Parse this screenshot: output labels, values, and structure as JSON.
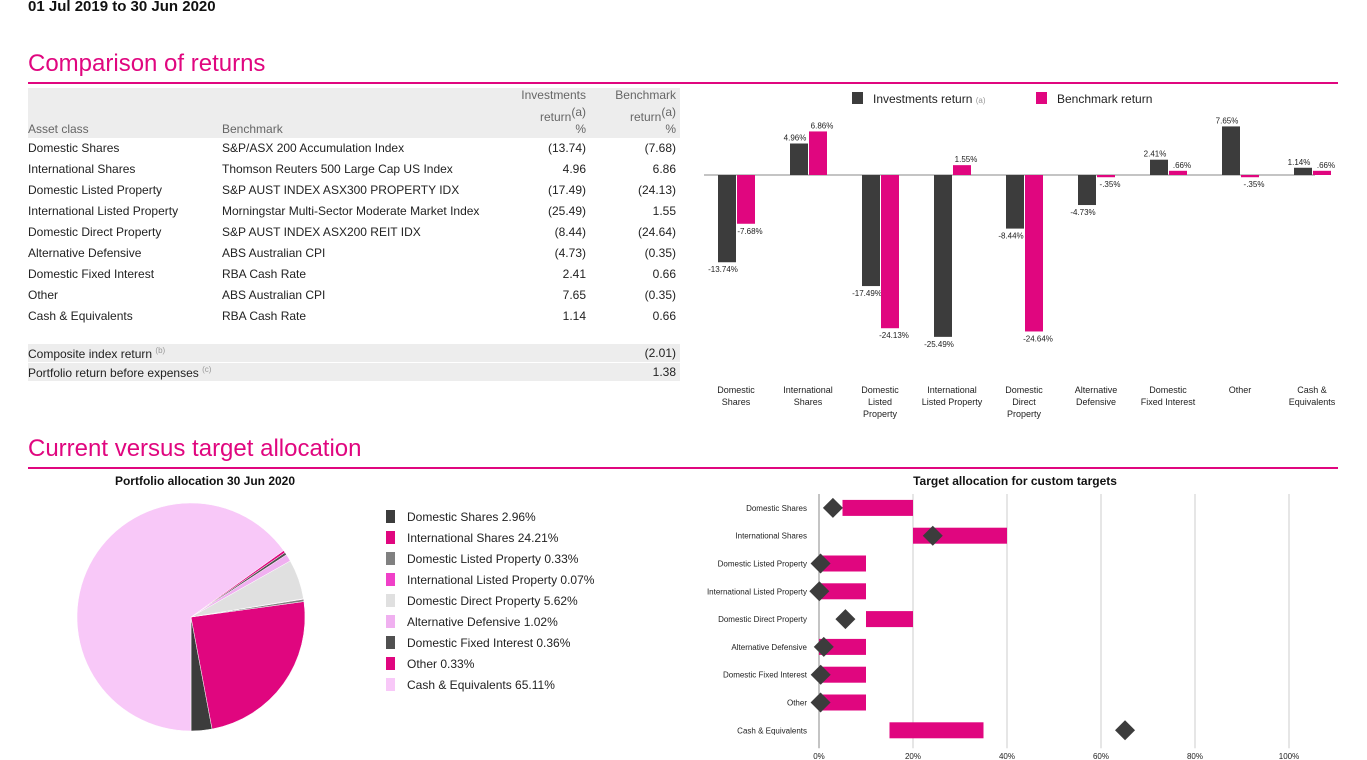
{
  "period": "01 Jul 2019 to 30 Jun 2020",
  "sections": {
    "returns_title": "Comparison of returns",
    "allocation_title": "Current versus target allocation"
  },
  "returns_table": {
    "head_asset": "Asset class",
    "head_benchmark": "Benchmark",
    "head_inv_1": "Investments",
    "head_inv_2": "return",
    "head_inv_sup": "(a)",
    "head_inv_unit": "%",
    "head_bm_1": "Benchmark",
    "head_bm_2": "return",
    "head_bm_sup": "(a)",
    "head_bm_unit": "%",
    "rows": [
      {
        "asset": "Domestic Shares",
        "benchmark": "S&P/ASX 200 Accumulation Index",
        "inv": "(13.74)",
        "bm": "(7.68)"
      },
      {
        "asset": "International Shares",
        "benchmark": "Thomson Reuters 500 Large Cap US Index",
        "inv": "4.96",
        "bm": "6.86"
      },
      {
        "asset": "Domestic Listed Property",
        "benchmark": "S&P AUST INDEX ASX300 PROPERTY IDX",
        "inv": "(17.49)",
        "bm": "(24.13)"
      },
      {
        "asset": "International Listed Property",
        "benchmark": "Morningstar Multi-Sector Moderate Market Index",
        "inv": "(25.49)",
        "bm": "1.55"
      },
      {
        "asset": "Domestic Direct Property",
        "benchmark": "S&P AUST INDEX ASX200 REIT IDX",
        "inv": "(8.44)",
        "bm": "(24.64)"
      },
      {
        "asset": "Alternative Defensive",
        "benchmark": "ABS Australian CPI",
        "inv": "(4.73)",
        "bm": "(0.35)"
      },
      {
        "asset": "Domestic Fixed Interest",
        "benchmark": "RBA Cash Rate",
        "inv": "2.41",
        "bm": "0.66"
      },
      {
        "asset": "Other",
        "benchmark": "ABS Australian CPI",
        "inv": "7.65",
        "bm": "(0.35)"
      },
      {
        "asset": "Cash & Equivalents",
        "benchmark": "RBA Cash Rate",
        "inv": "1.14",
        "bm": "0.66"
      }
    ],
    "composite_label": "Composite index return",
    "composite_sup": "(b)",
    "composite_value": "(2.01)",
    "portfolio_label": "Portfolio return before expenses",
    "portfolio_sup": "(c)",
    "portfolio_value": "1.38"
  },
  "colors": {
    "accent": "#e0067f",
    "dark": "#3c3c3c",
    "grey": "#808080",
    "light_pink": "#f8c8f8",
    "light_grey": "#e0e0e0",
    "pink2": "#f040c8"
  },
  "chart_data": [
    {
      "type": "bar",
      "categories": [
        [
          "Domestic",
          "Shares"
        ],
        [
          "International",
          "Shares"
        ],
        [
          "Domestic",
          "Listed",
          "Property"
        ],
        [
          "International",
          "Listed Property"
        ],
        [
          "Domestic",
          "Direct",
          "Property"
        ],
        [
          "Alternative",
          "Defensive"
        ],
        [
          "Domestic",
          "Fixed Interest"
        ],
        [
          "Other"
        ],
        [
          "Cash &",
          "Equivalents"
        ]
      ],
      "series": [
        {
          "name": "Investments return",
          "legend_sup": "(a)",
          "color": "#3c3c3c",
          "values": [
            -13.74,
            4.96,
            -17.49,
            -25.49,
            -8.44,
            -4.73,
            2.41,
            7.65,
            1.14
          ],
          "labels": [
            "-13.74%",
            "4.96%",
            "-17.49%",
            "-25.49%",
            "-8.44%",
            "-4.73%",
            "2.41%",
            "7.65%",
            "1.14%"
          ]
        },
        {
          "name": "Benchmark return",
          "color": "#e0067f",
          "values": [
            -7.68,
            6.86,
            -24.13,
            1.55,
            -24.64,
            -0.35,
            0.66,
            -0.35,
            0.66
          ],
          "labels": [
            "-7.68%",
            "6.86%",
            "-24.13%",
            "1.55%",
            "-24.64%",
            "-.35%",
            ".66%",
            "-.35%",
            ".66%"
          ]
        }
      ],
      "ylim": [
        -26,
        8
      ]
    },
    {
      "type": "pie",
      "title": "Portfolio allocation 30 Jun 2020",
      "slices": [
        {
          "label": "Domestic Shares 2.96%",
          "value": 2.96,
          "color": "#3c3c3c"
        },
        {
          "label": "International Shares 24.21%",
          "value": 24.21,
          "color": "#e0067f"
        },
        {
          "label": "Domestic Listed Property 0.33%",
          "value": 0.33,
          "color": "#808080"
        },
        {
          "label": "International Listed Property 0.07%",
          "value": 0.07,
          "color": "#f040c8"
        },
        {
          "label": "Domestic Direct Property 5.62%",
          "value": 5.62,
          "color": "#e0e0e0"
        },
        {
          "label": "Alternative Defensive 1.02%",
          "value": 1.02,
          "color": "#f0b0f0"
        },
        {
          "label": "Domestic Fixed Interest 0.36%",
          "value": 0.36,
          "color": "#505050"
        },
        {
          "label": "Other 0.33%",
          "value": 0.33,
          "color": "#e0067f"
        },
        {
          "label": "Cash & Equivalents 65.11%",
          "value": 65.11,
          "color": "#f8c8f8"
        }
      ]
    },
    {
      "type": "bar",
      "title": "Target allocation for custom targets",
      "categories": [
        "Domestic Shares",
        "International Shares",
        "Domestic Listed Property",
        "International Listed Property",
        "Domestic Direct Property",
        "Alternative Defensive",
        "Domestic Fixed Interest",
        "Other",
        "Cash & Equivalents"
      ],
      "target_ranges": [
        [
          5,
          20
        ],
        [
          20,
          40
        ],
        [
          0,
          10
        ],
        [
          0,
          10
        ],
        [
          10,
          20
        ],
        [
          0,
          10
        ],
        [
          0,
          10
        ],
        [
          0,
          10
        ],
        [
          15,
          35
        ]
      ],
      "current": [
        2.96,
        24.21,
        0.33,
        0.07,
        5.62,
        1.02,
        0.36,
        0.33,
        65.11
      ],
      "x_ticks": [
        "0%",
        "20%",
        "40%",
        "60%",
        "80%",
        "100%"
      ],
      "xlim": [
        0,
        100
      ]
    }
  ]
}
